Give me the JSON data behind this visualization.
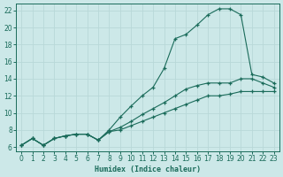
{
  "xlabel": "Humidex (Indice chaleur)",
  "bg_color": "#cce8e8",
  "grid_color": "#b8d8d8",
  "line_color": "#1a6b5a",
  "xlim": [
    -0.5,
    23.5
  ],
  "ylim": [
    5.5,
    22.8
  ],
  "xticks": [
    0,
    1,
    2,
    3,
    4,
    5,
    6,
    7,
    8,
    9,
    10,
    11,
    12,
    13,
    14,
    15,
    16,
    17,
    18,
    19,
    20,
    21,
    22,
    23
  ],
  "yticks": [
    6,
    8,
    10,
    12,
    14,
    16,
    18,
    20,
    22
  ],
  "line1_x": [
    0,
    1,
    2,
    3,
    4,
    5,
    6,
    7,
    8,
    9,
    10,
    11,
    12,
    13,
    14,
    15,
    16,
    17,
    18,
    19,
    20,
    21,
    22,
    23
  ],
  "line1_y": [
    6.2,
    7.0,
    6.2,
    7.0,
    7.3,
    7.5,
    7.5,
    6.8,
    8.0,
    9.5,
    10.8,
    12.0,
    13.0,
    15.2,
    18.7,
    19.2,
    20.3,
    21.5,
    22.2,
    22.2,
    21.5,
    14.5,
    14.2,
    13.5
  ],
  "line2_x": [
    0,
    1,
    2,
    3,
    4,
    5,
    6,
    7,
    8,
    9,
    10,
    11,
    12,
    13,
    14,
    15,
    16,
    17,
    18,
    19,
    20,
    21,
    22,
    23
  ],
  "line2_y": [
    6.2,
    7.0,
    6.2,
    7.0,
    7.3,
    7.5,
    7.5,
    6.8,
    7.8,
    8.3,
    9.0,
    9.8,
    10.5,
    11.2,
    12.0,
    12.8,
    13.2,
    13.5,
    13.5,
    13.5,
    14.0,
    14.0,
    13.5,
    13.0
  ],
  "line3_x": [
    0,
    1,
    2,
    3,
    4,
    5,
    6,
    7,
    8,
    9,
    10,
    11,
    12,
    13,
    14,
    15,
    16,
    17,
    18,
    19,
    20,
    21,
    22,
    23
  ],
  "line3_y": [
    6.2,
    7.0,
    6.2,
    7.0,
    7.3,
    7.5,
    7.5,
    6.8,
    7.8,
    8.0,
    8.5,
    9.0,
    9.5,
    10.0,
    10.5,
    11.0,
    11.5,
    12.0,
    12.0,
    12.2,
    12.5,
    12.5,
    12.5,
    12.5
  ]
}
